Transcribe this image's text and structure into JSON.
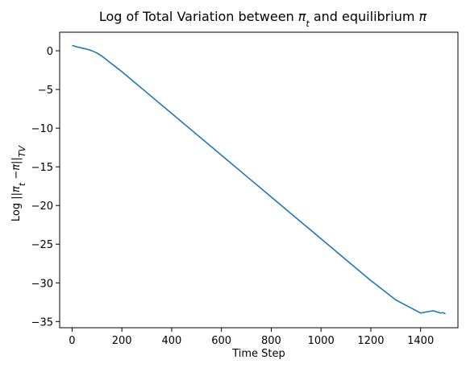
{
  "chart_data": {
    "type": "line",
    "title_parts": [
      "Log of Total Variation between ",
      "π",
      "t",
      " and equilibrium ",
      "π"
    ],
    "xlabel": "Time Step",
    "ylabel_parts": [
      "Log ||",
      "π",
      "t",
      " −",
      "π",
      "||",
      "TV"
    ],
    "xlim": [
      -50,
      1550
    ],
    "ylim": [
      -35.8,
      2.4
    ],
    "xticks": [
      0,
      200,
      400,
      600,
      800,
      1000,
      1200,
      1400
    ],
    "yticks": [
      0,
      -5,
      -10,
      -15,
      -20,
      -25,
      -30,
      -35
    ],
    "grid": false,
    "series": [
      {
        "color": "#1f77b4",
        "x": [
          0,
          20,
          40,
          60,
          80,
          100,
          120,
          140,
          160,
          180,
          200,
          250,
          300,
          400,
          500,
          600,
          700,
          800,
          900,
          1000,
          1100,
          1200,
          1300,
          1400,
          1450,
          1480,
          1490,
          1500
        ],
        "y": [
          0.7,
          0.5,
          0.35,
          0.2,
          0.0,
          -0.3,
          -0.7,
          -1.2,
          -1.7,
          -2.2,
          -2.7,
          -4.05,
          -5.4,
          -8.1,
          -10.8,
          -13.5,
          -16.2,
          -18.9,
          -21.6,
          -24.3,
          -27.0,
          -29.7,
          -32.2,
          -33.9,
          -33.6,
          -33.9,
          -33.85,
          -34.0
        ]
      }
    ]
  }
}
